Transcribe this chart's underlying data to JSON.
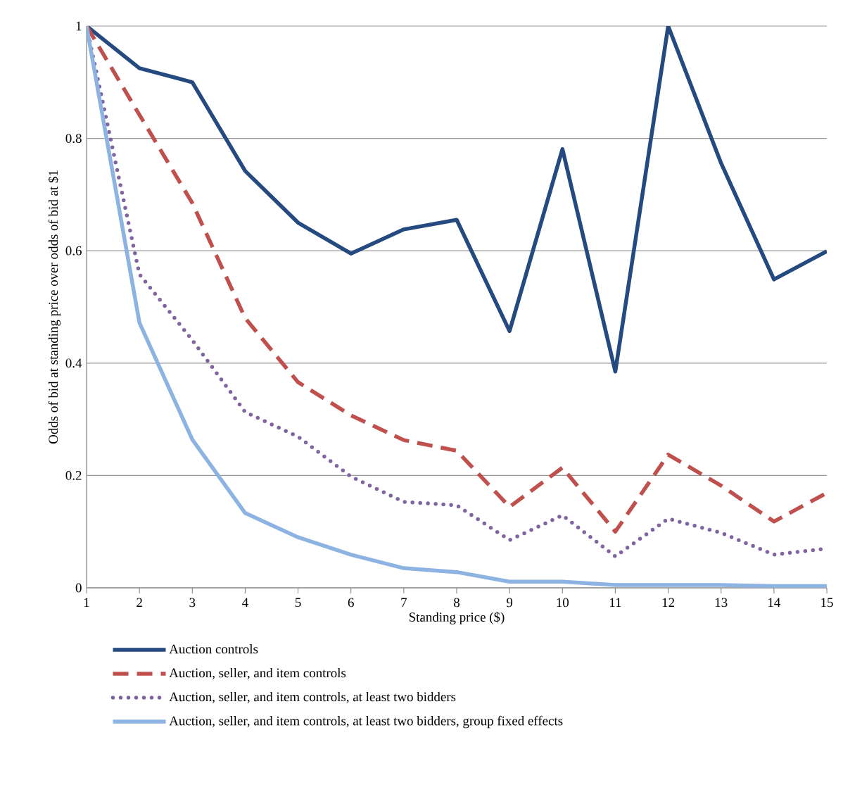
{
  "chart_data": {
    "type": "line",
    "xlabel": "Standing price ($)",
    "ylabel": "Odds of bid at standing price over odds of bid at $1",
    "x": [
      1,
      2,
      3,
      4,
      5,
      6,
      7,
      8,
      9,
      10,
      11,
      12,
      13,
      14,
      15
    ],
    "xlim": [
      1,
      15
    ],
    "xticks": [
      1,
      2,
      3,
      4,
      5,
      6,
      7,
      8,
      9,
      10,
      11,
      12,
      13,
      14,
      15
    ],
    "ylim": [
      0,
      1
    ],
    "yticks": [
      0,
      0.2,
      0.4,
      0.6,
      0.8,
      1
    ],
    "grid": "y",
    "legend": "bottom",
    "marker": "none",
    "series": [
      {
        "name": "Auction controls",
        "color": "#254a7f",
        "line_style": "solid",
        "values": [
          1,
          0.925,
          0.9,
          0.742,
          0.65,
          0.595,
          0.638,
          0.655,
          0.457,
          0.781,
          0.385,
          1.0,
          0.756,
          0.549,
          0.599
        ]
      },
      {
        "name": "Auction, seller, and item controls",
        "color": "#c0504d",
        "line_style": "dashed",
        "values": [
          1,
          0.842,
          0.685,
          0.48,
          0.366,
          0.307,
          0.263,
          0.244,
          0.144,
          0.214,
          0.1,
          0.237,
          0.182,
          0.118,
          0.169
        ]
      },
      {
        "name": "Auction, seller, and item controls, at least two bidders",
        "color": "#8064a2",
        "line_style": "dotted",
        "values": [
          1,
          0.558,
          0.441,
          0.313,
          0.269,
          0.198,
          0.153,
          0.147,
          0.085,
          0.129,
          0.056,
          0.123,
          0.098,
          0.059,
          0.07
        ]
      },
      {
        "name": "Auction, seller, and item controls, at least two bidders, group fixed effects",
        "color": "#8db3e2",
        "line_style": "solid",
        "values": [
          1,
          0.472,
          0.264,
          0.133,
          0.09,
          0.059,
          0.035,
          0.028,
          0.011,
          0.011,
          0.005,
          0.005,
          0.005,
          0.003,
          0.003
        ]
      }
    ]
  }
}
